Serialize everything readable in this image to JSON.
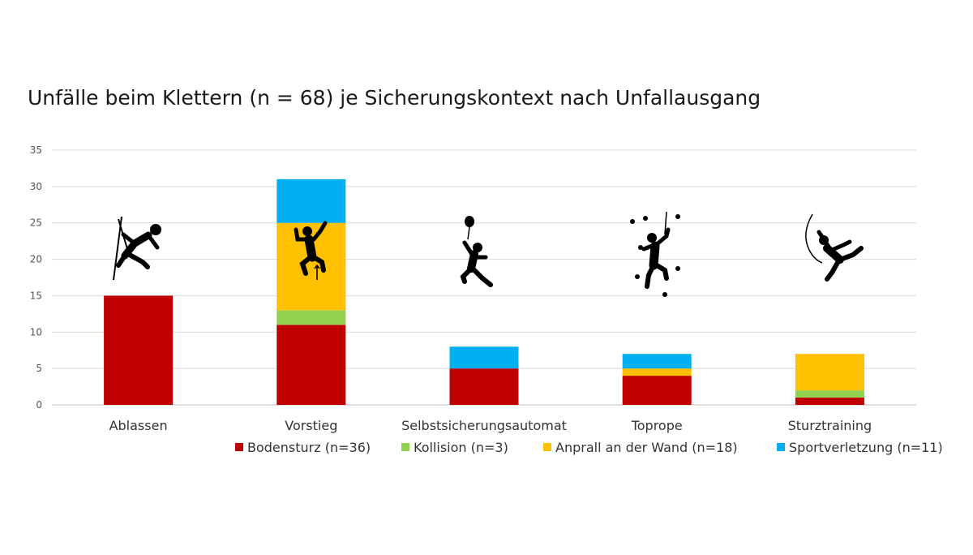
{
  "chart_data": {
    "type": "bar",
    "stacked": true,
    "title": "Unfälle beim Klettern (n = 68) je Sicherungskontext nach Unfallausgang",
    "categories": [
      "Ablassen",
      "Vorstieg",
      "Selbstsicherungsautomat",
      "Toprope",
      "Sturztraining"
    ],
    "ylim": [
      0,
      35
    ],
    "yticks": [
      0,
      5,
      10,
      15,
      20,
      25,
      30,
      35
    ],
    "grid": true,
    "legend_position": "bottom",
    "series": [
      {
        "name": "Bodensturz (n=36)",
        "color": "#c00000",
        "values": [
          15,
          11,
          5,
          4,
          1
        ]
      },
      {
        "name": "Kollision (n=3)",
        "color": "#92d050",
        "values": [
          0,
          2,
          0,
          0,
          1
        ]
      },
      {
        "name": "Anprall an der Wand (n=18)",
        "color": "#ffc000",
        "values": [
          0,
          12,
          0,
          1,
          5
        ]
      },
      {
        "name": "Sportverletzung (n=11)",
        "color": "#00b0f0",
        "values": [
          0,
          6,
          3,
          2,
          0
        ]
      }
    ],
    "icons": [
      "abseiling-climber-icon",
      "lead-climber-icon",
      "auto-belay-climber-icon",
      "toprope-climber-icon",
      "falling-climber-icon"
    ]
  }
}
